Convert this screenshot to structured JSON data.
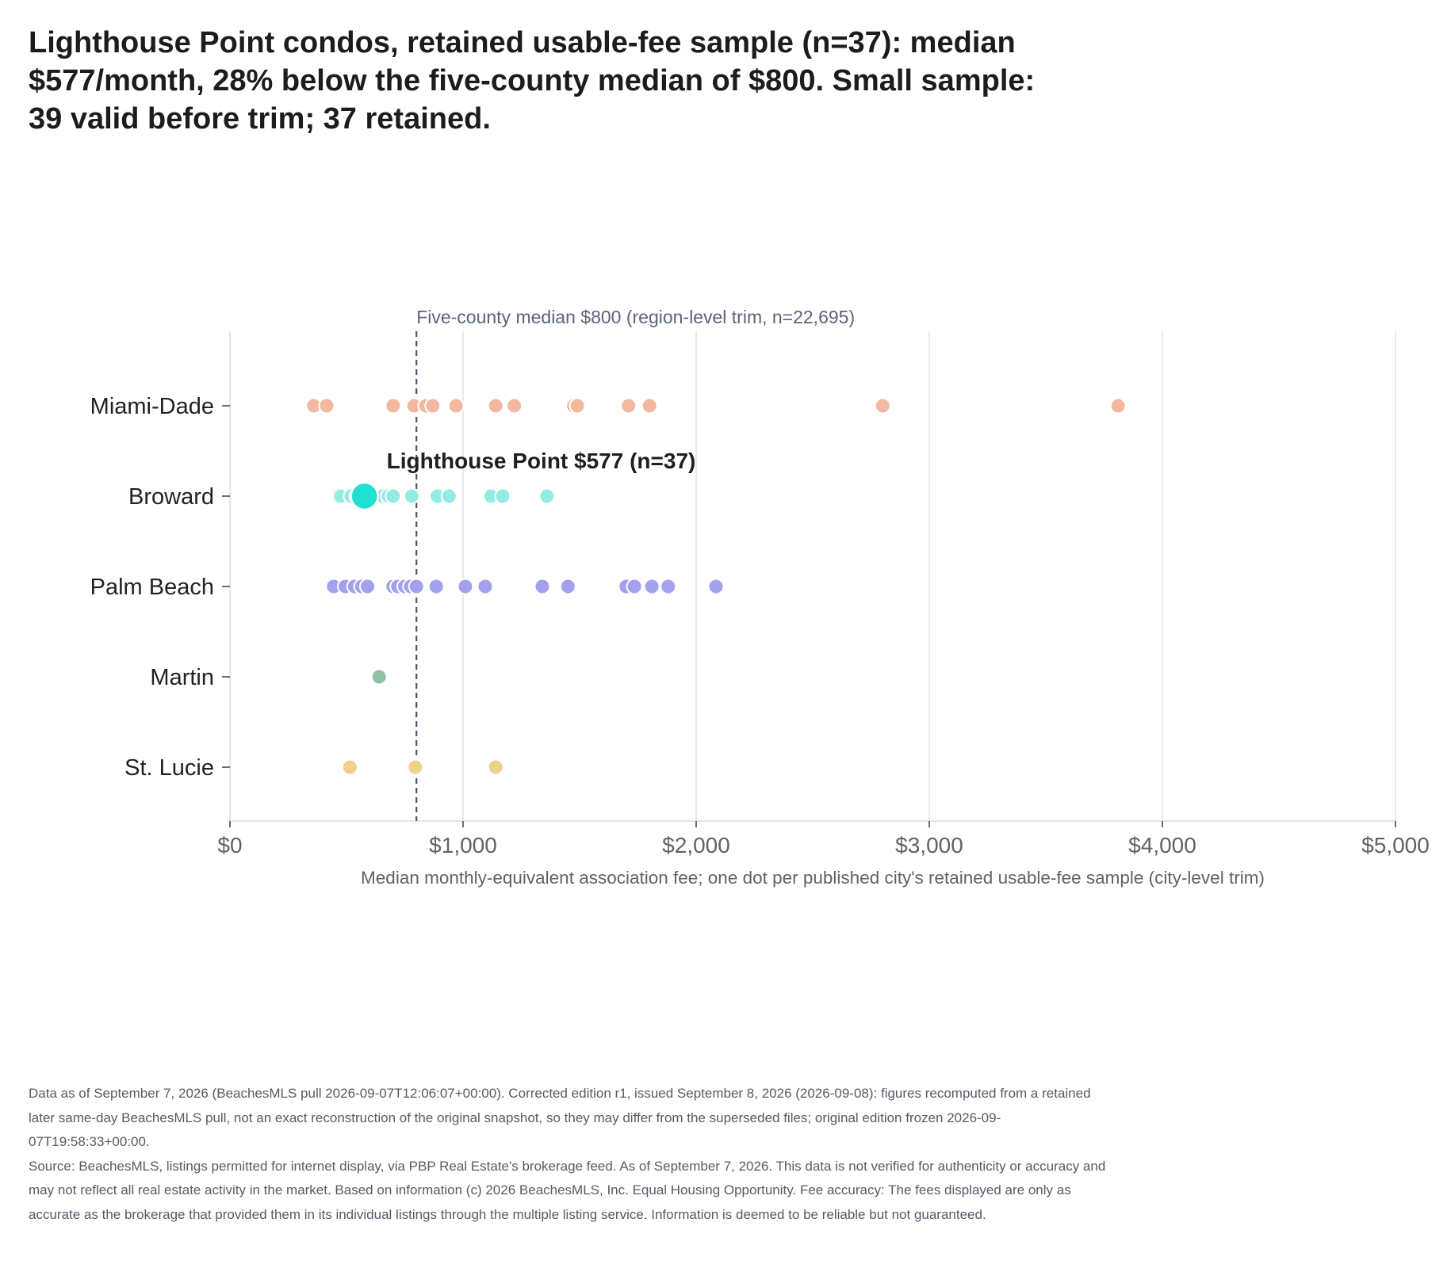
{
  "title": "Lighthouse Point condos, retained usable-fee sample (n=37): median $577/month, 28% below the five-county median of $800. Small sample: 39 valid before trim; 37 retained.",
  "notes": {
    "data_note": "Data as of September 7, 2026 (BeachesMLS pull 2026-09-07T12:06:07+00:00). Corrected edition r1, issued September 8, 2026 (2026-09-08): figures recomputed from a retained later same-day BeachesMLS pull, not an exact reconstruction of the original snapshot, so they may differ from the superseded files; original edition frozen 2026-09-07T19:58:33+00:00.",
    "source_note": "Source: BeachesMLS, listings permitted for internet display, via PBP Real Estate's brokerage feed. As of September 7, 2026. This data is not verified for authenticity or accuracy and may not reflect all real estate activity in the market. Based on information (c) 2026 BeachesMLS, Inc. Equal Housing Opportunity. Fee accuracy: The fees displayed are only as accurate as the brokerage that provided them in its individual listings through the multiple listing service. Information is deemed to be reliable but not guaranteed."
  },
  "chart_data": {
    "type": "scatter",
    "title": "Lighthouse Point condos, retained usable-fee sample (n=37): median $577/month, 28% below the five-county median of $800. Small sample: 39 valid before trim; 37 retained.",
    "xlabel": "Median monthly-equivalent association fee; one dot per published city's retained usable-fee sample (city-level trim)",
    "ylabel": "",
    "xlim": [
      0,
      5000
    ],
    "x_ticks": [
      0,
      1000,
      2000,
      3000,
      4000,
      5000
    ],
    "x_tick_labels": [
      "$0",
      "$1,000",
      "$2,000",
      "$3,000",
      "$4,000",
      "$5,000"
    ],
    "categories": [
      "Miami-Dade",
      "Broward",
      "Palm Beach",
      "Martin",
      "St. Lucie"
    ],
    "grid": "vertical",
    "series": [
      {
        "name": "Miami-Dade",
        "color": "#f2b8a0",
        "values": [
          360,
          415,
          700,
          790,
          840,
          870,
          970,
          1140,
          1220,
          1475,
          1490,
          1710,
          1800,
          2800,
          3810
        ]
      },
      {
        "name": "Broward",
        "color": "#93ece4",
        "values": [
          475,
          520,
          545,
          560,
          600,
          620,
          640,
          655,
          680,
          700,
          780,
          890,
          940,
          1120,
          1170,
          1360
        ]
      },
      {
        "name": "Palm Beach",
        "color": "#a3a1ec",
        "values": [
          445,
          495,
          535,
          565,
          590,
          700,
          720,
          750,
          775,
          800,
          885,
          1010,
          1095,
          1340,
          1450,
          1700,
          1735,
          1810,
          1880,
          2085
        ]
      },
      {
        "name": "Martin",
        "color": "#8fbfa8",
        "values": [
          640
        ]
      },
      {
        "name": "St. Lucie",
        "color": "#efd08f",
        "values": [
          515,
          795,
          1140
        ]
      }
    ],
    "highlight": {
      "category": "Broward",
      "value": 577,
      "color": "#22e0d0",
      "label": "Lighthouse Point $577 (n=37)"
    },
    "reference_line": {
      "value": 800,
      "color": "#4a5568",
      "label": "Five-county median $800 (region-level trim, n=22,695)"
    }
  }
}
